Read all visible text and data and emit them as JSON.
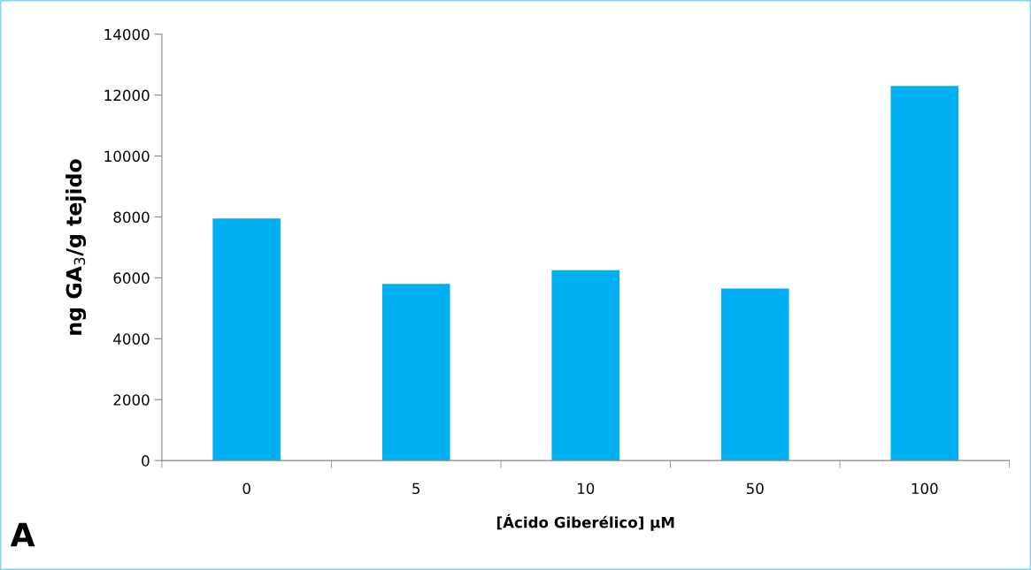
{
  "chart_data": {
    "type": "bar",
    "xlabel": "[Ácido Giberélico] µM",
    "ylabel": "ng GA$_{3}$/g tejido",
    "categories": [
      "0",
      "5",
      "10",
      "50",
      "100"
    ],
    "values": [
      7950,
      5800,
      6250,
      5650,
      12300
    ],
    "color": "#00b0f0",
    "ylim": [
      0,
      14000
    ],
    "yticks": [
      0,
      2000,
      4000,
      6000,
      8000,
      10000,
      12000,
      14000
    ],
    "grid": false,
    "annotations": [
      "A"
    ]
  }
}
